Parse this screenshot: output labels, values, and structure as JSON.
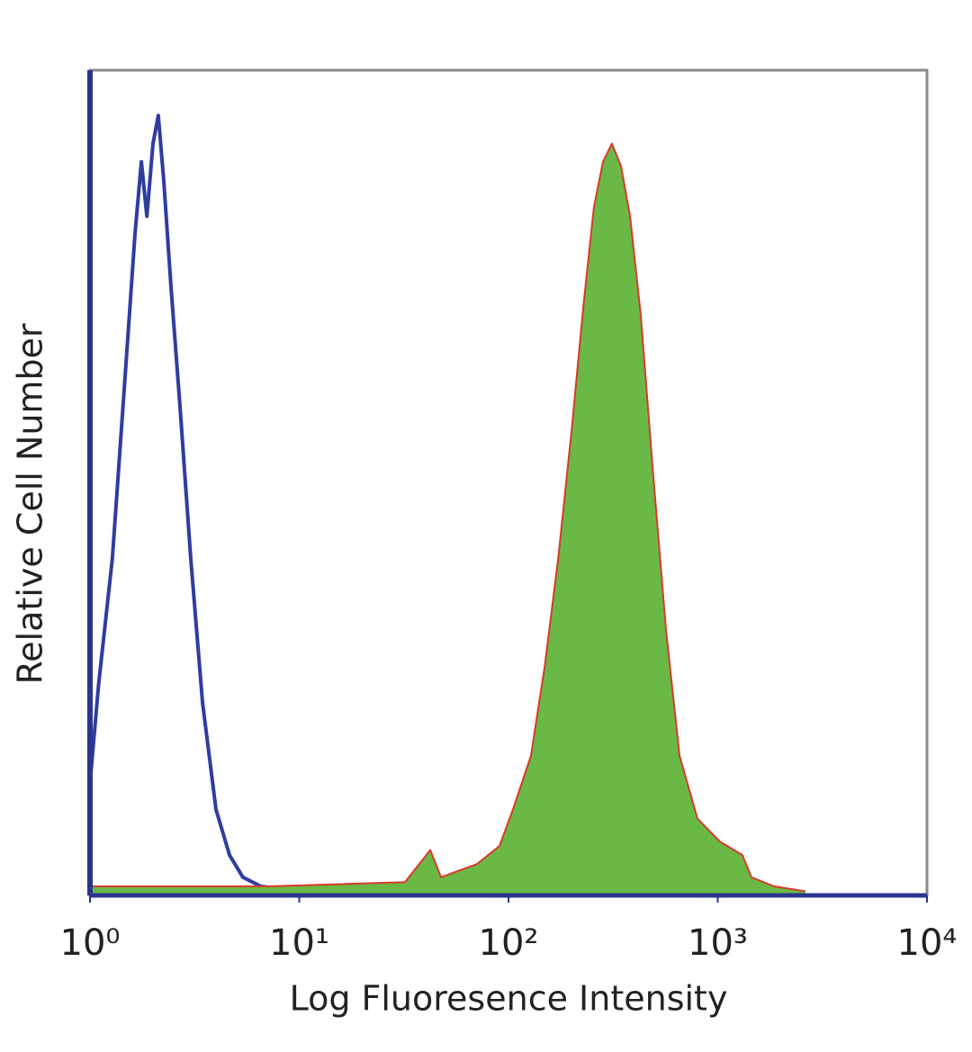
{
  "chart_data": {
    "type": "line",
    "xlabel": "Log Fluoresence Intensity",
    "ylabel": "Relative Cell Number",
    "xscale": "log",
    "xlim": [
      1,
      10000
    ],
    "ylim": [
      0,
      100
    ],
    "xticks": [
      {
        "value": 1,
        "label": "10⁰"
      },
      {
        "value": 10,
        "label": "10¹"
      },
      {
        "value": 100,
        "label": "10²"
      },
      {
        "value": 1000,
        "label": "10³"
      },
      {
        "value": 10000,
        "label": "10⁴"
      }
    ],
    "axis_color": "#2b3590",
    "frame_color": "#8a8a8a",
    "series": [
      {
        "color": "#2f3ca0",
        "x": [
          1.0,
          1.1,
          1.28,
          1.49,
          1.64,
          1.76,
          1.87,
          2.0,
          2.12,
          2.25,
          2.44,
          2.69,
          3.03,
          3.45,
          4.0,
          4.64,
          5.38,
          6.56,
          9.75,
          12
        ],
        "values": [
          13.6,
          25.6,
          40.9,
          64.9,
          80.2,
          88.9,
          82.3,
          91.1,
          94.5,
          86.7,
          73.6,
          59.4,
          40.9,
          23.4,
          10.4,
          4.9,
          2.2,
          1.1,
          0.5,
          0
        ]
      },
      {
        "color": "#d93a2b",
        "fill": "#6ab845",
        "x": [
          1,
          7.25,
          32.0,
          42.3,
          47.6,
          70.7,
          90.6,
          105,
          128,
          149,
          173,
          200,
          228,
          256,
          283,
          312,
          345,
          381,
          429,
          488,
          566,
          657,
          800,
          1026,
          1312,
          1449,
          1857,
          2624
        ],
        "values": [
          1.1,
          1.1,
          1.6,
          5.5,
          2.2,
          3.8,
          6.0,
          10.4,
          16.9,
          27.8,
          40.9,
          56.2,
          71.4,
          83.4,
          88.9,
          91.1,
          88.4,
          82.3,
          70.3,
          51.9,
          32.2,
          16.9,
          9.3,
          6.5,
          4.9,
          2.2,
          1.1,
          0.5
        ]
      }
    ]
  }
}
